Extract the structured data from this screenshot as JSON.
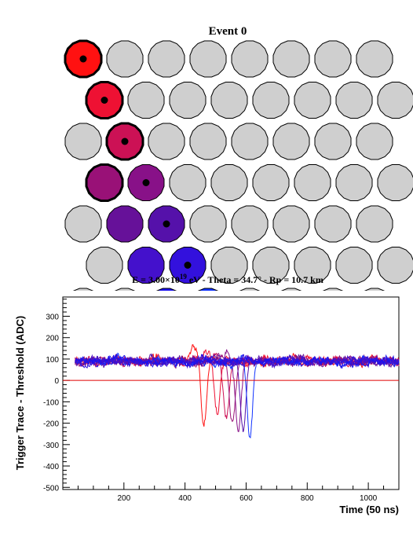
{
  "event_panel": {
    "title": "Event 0",
    "caption_prefix": "E = 3.00",
    "caption_times": "×",
    "caption_base": "10",
    "caption_exp": "19",
    "caption_suffix": " eV - Theta = 34.7° - Rp = 10.7 km",
    "grid": {
      "rows": 7,
      "cols": 8
    },
    "default_color": "#cfcfcf",
    "hit_pixels": [
      {
        "row": 0,
        "col": 0,
        "color": "#ff1111",
        "thick": true,
        "dot": true
      },
      {
        "row": 1,
        "col": 0,
        "color": "#ee1133",
        "thick": true,
        "dot": true
      },
      {
        "row": 2,
        "col": 1,
        "color": "#cc1155",
        "thick": true,
        "dot": true
      },
      {
        "row": 3,
        "col": 0,
        "color": "#991177",
        "thick": true,
        "dot": false
      },
      {
        "row": 3,
        "col": 1,
        "color": "#881188",
        "thick": false,
        "dot": true
      },
      {
        "row": 4,
        "col": 1,
        "color": "#661199",
        "thick": false,
        "dot": false
      },
      {
        "row": 4,
        "col": 2,
        "color": "#5511aa",
        "thick": false,
        "dot": true
      },
      {
        "row": 5,
        "col": 1,
        "color": "#4411cc",
        "thick": false,
        "dot": false
      },
      {
        "row": 5,
        "col": 2,
        "color": "#3311dd",
        "thick": false,
        "dot": true
      },
      {
        "row": 6,
        "col": 2,
        "color": "#1a11ee",
        "thick": false,
        "dot": false
      },
      {
        "row": 6,
        "col": 3,
        "color": "#1133ff",
        "thick": false,
        "dot": true
      }
    ]
  },
  "chart_data": {
    "type": "line",
    "xlabel": "Time (50 ns)",
    "ylabel": "Trigger Trace - Threshold (ADC)",
    "xlim": [
      0,
      1100
    ],
    "ylim": [
      -510,
      390
    ],
    "x_ticks": [
      200,
      400,
      600,
      800,
      1000
    ],
    "y_ticks": [
      -500,
      -400,
      -300,
      -200,
      -100,
      0,
      100,
      200,
      300
    ],
    "threshold_line": {
      "y": 0,
      "color": "#e00000"
    },
    "baseline": 90,
    "noise_amplitude": 18,
    "series_colors": [
      "#ff1111",
      "#ee1133",
      "#cc1155",
      "#991177",
      "#881188",
      "#661199",
      "#5511aa",
      "#4411cc",
      "#3311dd",
      "#1a11ee",
      "#1133ff"
    ],
    "pulses": [
      {
        "color": "#ff1111",
        "pulse_x": 430,
        "overshoot": 180,
        "x_min": 462,
        "y_min": -205
      },
      {
        "color": "#ee1133",
        "pulse_x": 470,
        "overshoot": 140,
        "x_min": 505,
        "y_min": -165
      },
      {
        "color": "#cc1155",
        "pulse_x": 500,
        "overshoot": 130,
        "x_min": 535,
        "y_min": -175
      },
      {
        "color": "#991177",
        "pulse_x": 520,
        "overshoot": 120,
        "x_min": 555,
        "y_min": -200
      },
      {
        "color": "#881188",
        "pulse_x": 540,
        "overshoot": 125,
        "x_min": 575,
        "y_min": -230
      },
      {
        "color": "#5511aa",
        "pulse_x": 560,
        "overshoot": 120,
        "x_min": 590,
        "y_min": -235
      },
      {
        "color": "#1133ff",
        "pulse_x": 590,
        "overshoot": 115,
        "x_min": 612,
        "y_min": -295
      }
    ]
  }
}
